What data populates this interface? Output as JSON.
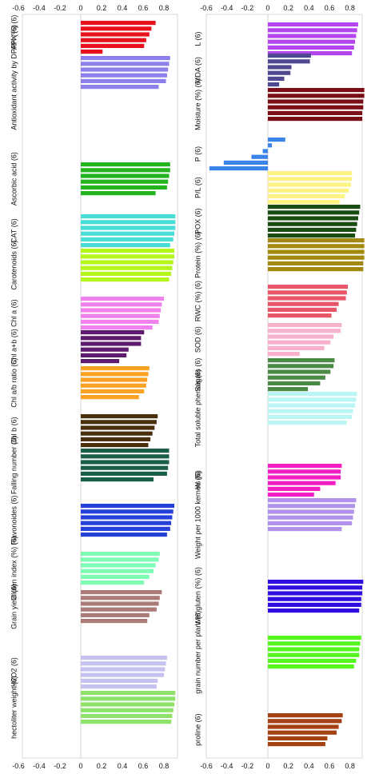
{
  "chart_data": [
    {
      "type": "bar",
      "orientation": "horizontal",
      "xlim": [
        -0.6,
        0.9
      ],
      "xticks": [
        "-0.6",
        "-0.4",
        "-0.2",
        "0",
        "0.2",
        "0.4",
        "0.6",
        "0.8"
      ],
      "grid": false,
      "categories": [
        {
          "label": "APX (6)",
          "color": "#e8121c",
          "values": [
            0.72,
            0.68,
            0.66,
            0.63,
            0.61,
            0.21
          ]
        },
        {
          "label": "Antioxidant activity by DPPH (%) (6)",
          "color": "#8b80ec",
          "values": [
            0.86,
            0.85,
            0.84,
            0.83,
            0.82,
            0.75
          ]
        },
        {
          "label": "Ascorbic acid (6)",
          "color": "#22b41e",
          "values": [
            0.86,
            0.86,
            0.85,
            0.84,
            0.83,
            0.72
          ]
        },
        {
          "label": "CAT (6)",
          "color": "#48ddd5",
          "values": [
            0.91,
            0.91,
            0.91,
            0.9,
            0.89,
            0.86
          ]
        },
        {
          "label": "Carotenoids (6)",
          "color": "#b4f51c",
          "values": [
            0.9,
            0.9,
            0.89,
            0.88,
            0.87,
            0.85
          ]
        },
        {
          "label": "Chl a (6)",
          "color": "#f081ee",
          "values": [
            0.8,
            0.78,
            0.77,
            0.76,
            0.75,
            0.69
          ]
        },
        {
          "label": "Chl a+b (6)",
          "color": "#5e1a6e",
          "values": [
            0.61,
            0.58,
            0.58,
            0.46,
            0.44,
            0.37
          ]
        },
        {
          "label": "Chl a/b ratio (6)",
          "color": "#f9a224",
          "values": [
            0.66,
            0.65,
            0.64,
            0.63,
            0.61,
            0.56
          ]
        },
        {
          "label": "Chl b (6)",
          "color": "#4a2f0c",
          "values": [
            0.74,
            0.73,
            0.71,
            0.69,
            0.67,
            0.65
          ]
        },
        {
          "label": "Falling number (6)",
          "color": "#1a5e4a",
          "values": [
            0.85,
            0.85,
            0.85,
            0.84,
            0.83,
            0.7
          ]
        },
        {
          "label": "Flavonoides (6)",
          "color": "#2541d8",
          "values": [
            0.9,
            0.89,
            0.88,
            0.87,
            0.86,
            0.83
          ]
        },
        {
          "label": "Gluten index (%) (6)",
          "color": "#7efcb6",
          "values": [
            0.76,
            0.75,
            0.72,
            0.7,
            0.66,
            0.61
          ]
        },
        {
          "label": "Grain yield (6)",
          "color": "#ab7b78",
          "values": [
            0.78,
            0.76,
            0.75,
            0.73,
            0.66,
            0.64
          ]
        },
        {
          "label": "H2O2 (6)",
          "color": "#c6c2ef",
          "values": [
            0.83,
            0.82,
            0.81,
            0.8,
            0.74,
            0.73
          ]
        },
        {
          "label": "hectoliter weight (6)",
          "color": "#8fe269",
          "values": [
            0.91,
            0.91,
            0.9,
            0.89,
            0.88,
            0.87
          ]
        }
      ]
    },
    {
      "type": "bar",
      "orientation": "horizontal",
      "xlim": [
        -0.6,
        0.9
      ],
      "xticks": [
        "-0.6",
        "-0.4",
        "-0.2",
        "0",
        "0.2",
        "0.4",
        "0.6",
        "0.8"
      ],
      "grid": false,
      "categories": [
        {
          "label": "L (6)",
          "color": "#b445ee",
          "values": [
            0.88,
            0.87,
            0.86,
            0.85,
            0.84,
            0.82
          ]
        },
        {
          "label": "MDA (6)",
          "color": "#4e4890",
          "values": [
            0.42,
            0.41,
            0.23,
            0.22,
            0.16,
            0.11
          ]
        },
        {
          "label": "Moisture (%) (6)",
          "color": "#7a0f17",
          "values": [
            0.94,
            0.94,
            0.93,
            0.93,
            0.92,
            0.92
          ]
        },
        {
          "label": "P (6)",
          "color": "#3a83e8",
          "values": [
            0.17,
            0.04,
            -0.05,
            -0.16,
            -0.43,
            -0.57
          ]
        },
        {
          "label": "P/L (6)",
          "color": "#fdf383",
          "values": [
            0.82,
            0.82,
            0.81,
            0.79,
            0.75,
            0.7
          ]
        },
        {
          "label": "POX (6)",
          "color": "#1a4d14",
          "values": [
            0.9,
            0.89,
            0.88,
            0.87,
            0.86,
            0.85
          ]
        },
        {
          "label": "Protein (%) (6)",
          "color": "#a2890e",
          "values": [
            0.94,
            0.94,
            0.94,
            0.94,
            0.93,
            0.93
          ]
        },
        {
          "label": "RWC (%) (6)",
          "color": "#e8566a",
          "values": [
            0.78,
            0.77,
            0.76,
            0.69,
            0.67,
            0.62
          ]
        },
        {
          "label": "SOD (6)",
          "color": "#f8b1cd",
          "values": [
            0.72,
            0.71,
            0.64,
            0.61,
            0.55,
            0.31
          ]
        },
        {
          "label": "Sugars (6)",
          "color": "#4a8a45",
          "values": [
            0.65,
            0.64,
            0.61,
            0.56,
            0.51,
            0.39
          ]
        },
        {
          "label": "Total soluble phenols (6)",
          "color": "#baf6f6",
          "values": [
            0.87,
            0.86,
            0.85,
            0.83,
            0.82,
            0.77
          ]
        },
        {
          "label": "W (6)",
          "color": "#f51ec3",
          "values": [
            0.72,
            0.71,
            0.71,
            0.66,
            0.51,
            0.45
          ]
        },
        {
          "label": "Weight per 1000 kernels (6)",
          "color": "#b192ec",
          "values": [
            0.86,
            0.85,
            0.84,
            0.83,
            0.82,
            0.72
          ]
        },
        {
          "label": "Wet gluten (%) (6)",
          "color": "#2f0fe0",
          "values": [
            0.93,
            0.92,
            0.92,
            0.91,
            0.91,
            0.89
          ]
        },
        {
          "label": "grain number per plant (6)",
          "color": "#55f51e",
          "values": [
            0.91,
            0.9,
            0.89,
            0.89,
            0.86,
            0.84
          ]
        },
        {
          "label": "proline (6)",
          "color": "#a54214",
          "values": [
            0.73,
            0.72,
            0.69,
            0.67,
            0.58,
            0.56
          ]
        }
      ]
    }
  ]
}
